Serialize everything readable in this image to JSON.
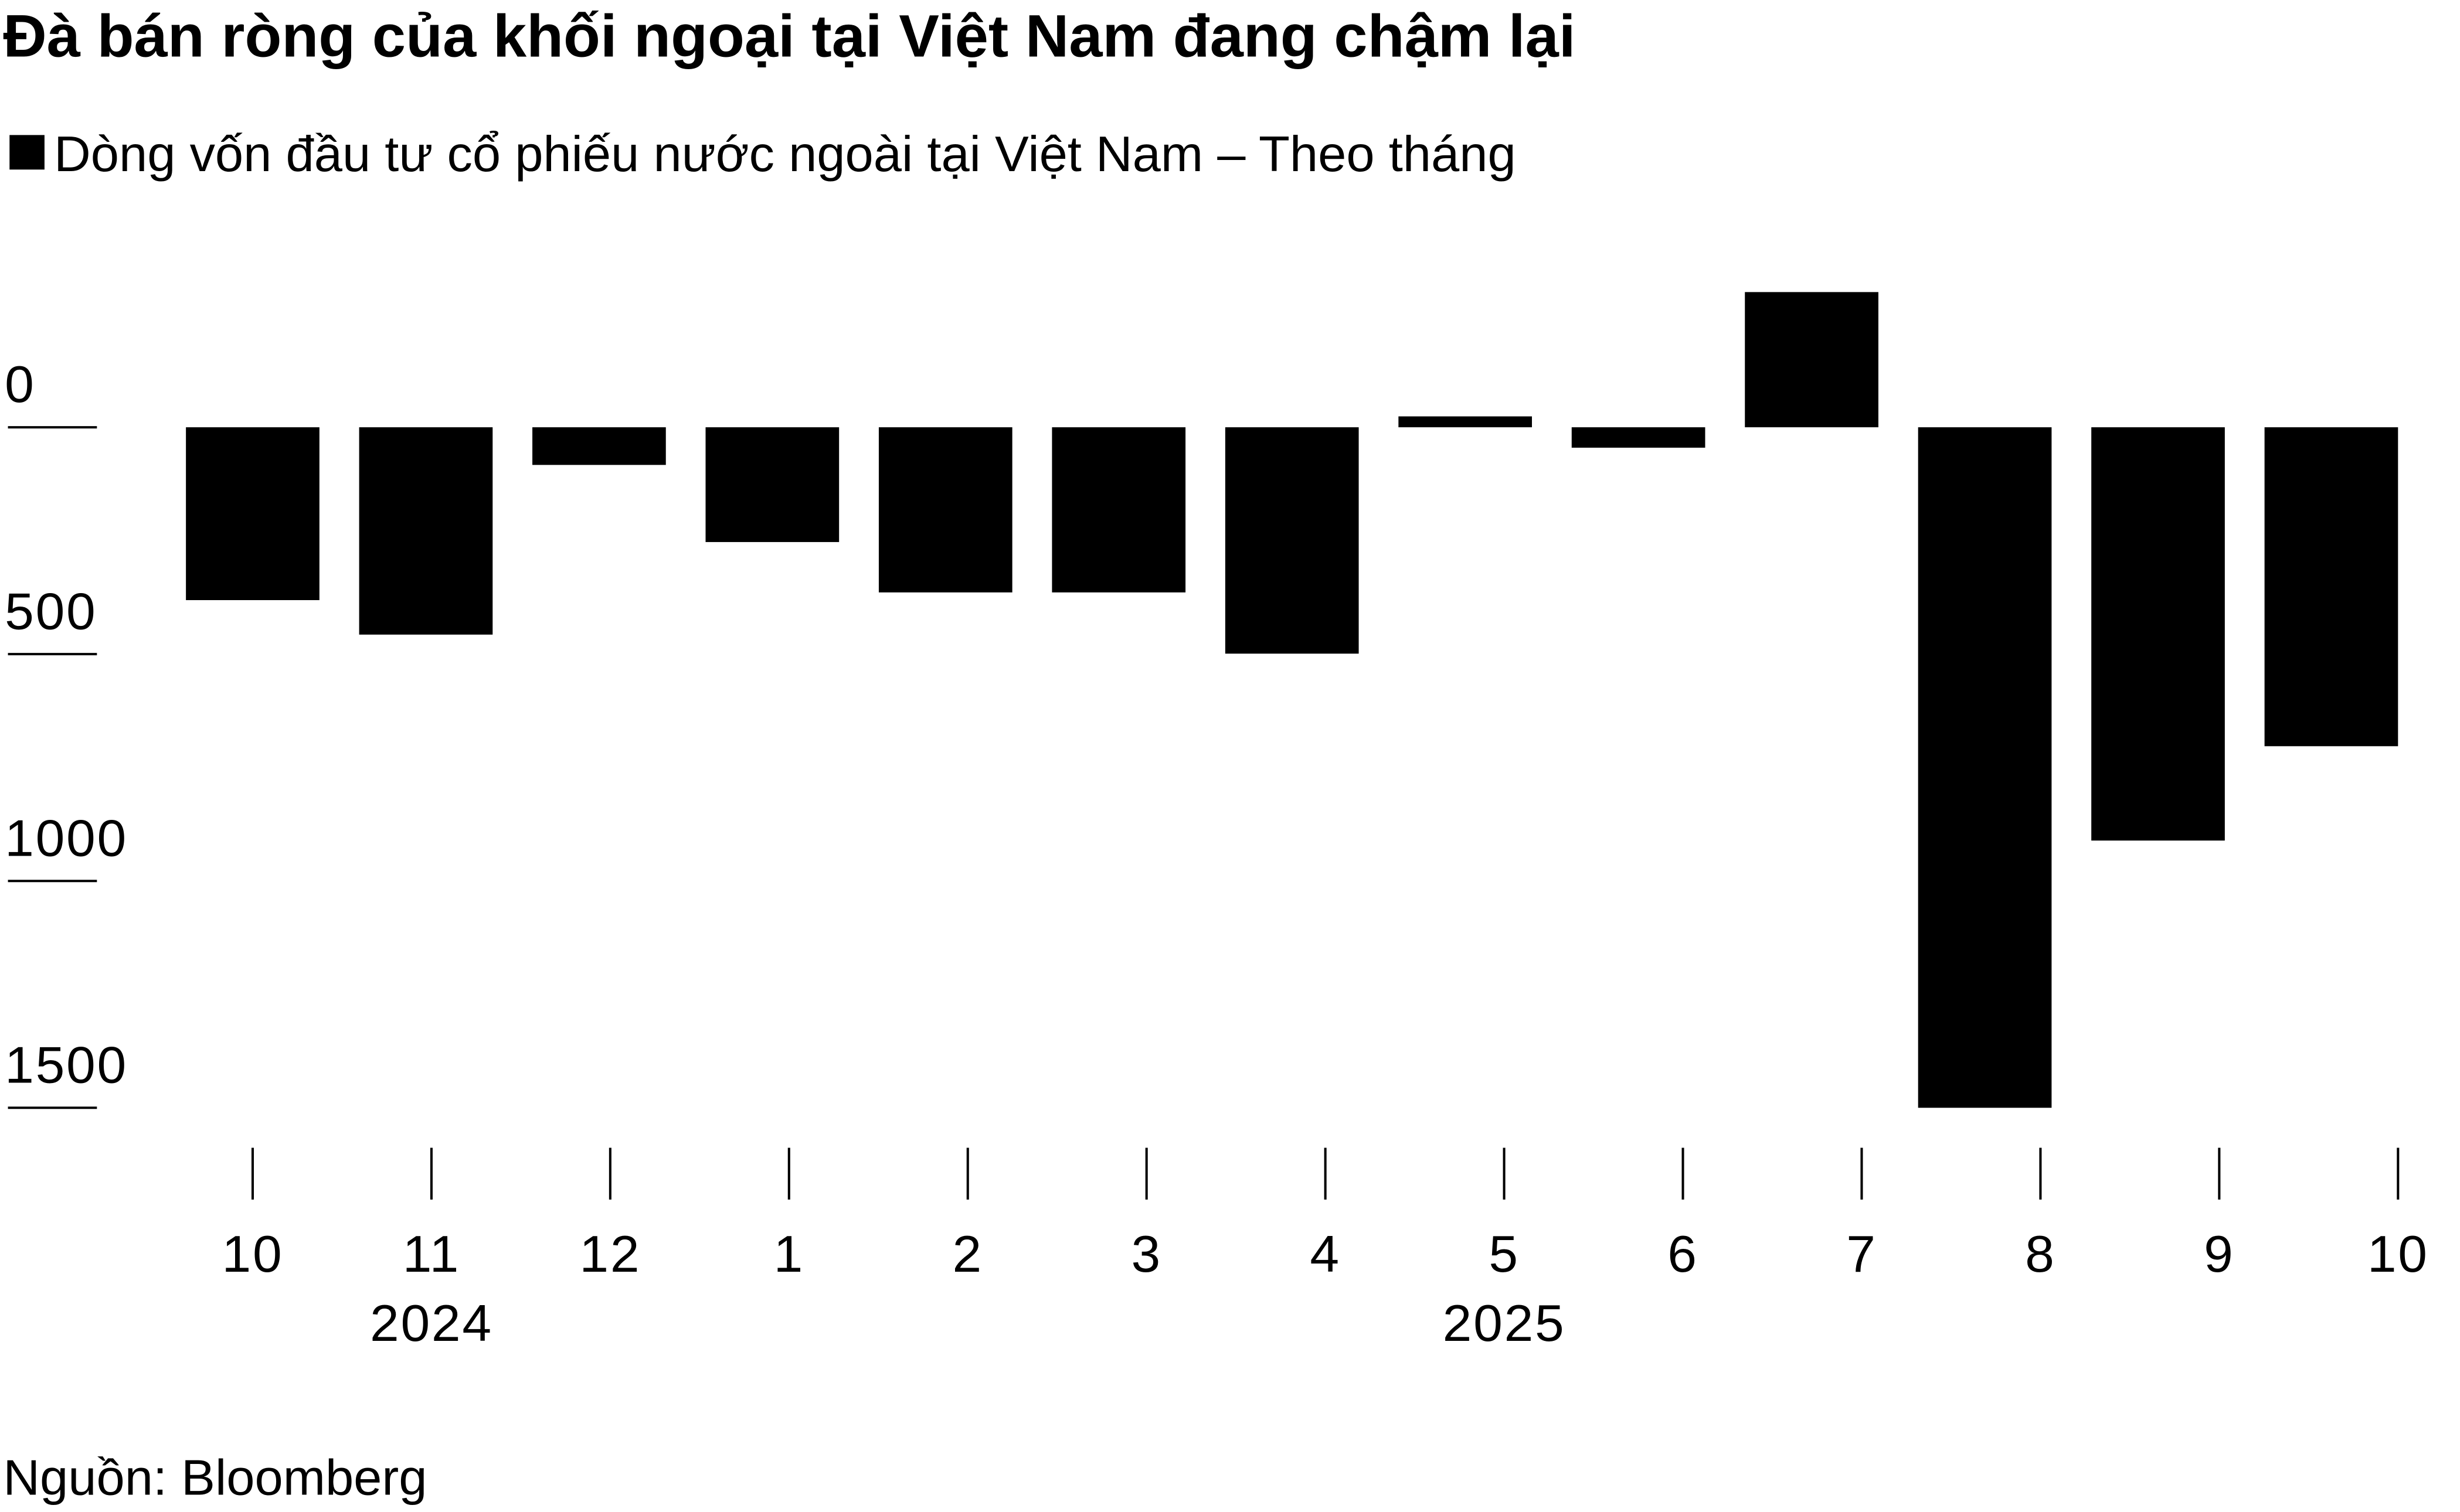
{
  "chart_data": {
    "type": "bar",
    "title": "Đà bán ròng của khối ngoại tại Việt Nam đang chậm lại",
    "series": [
      {
        "name": "Dòng vốn đầu tư cổ phiếu nước ngoài tại Việt Nam – Theo tháng",
        "color": "#000000",
        "values": [
          381,
          457,
          83,
          253,
          364,
          364,
          499,
          -24,
          45,
          -298,
          1500,
          911,
          703
        ]
      }
    ],
    "categories": [
      "10",
      "11",
      "12",
      "1",
      "2",
      "3",
      "4",
      "5",
      "6",
      "7",
      "8",
      "9",
      "10"
    ],
    "years": [
      "2024",
      "2025"
    ],
    "ylim": [
      1550,
      -350
    ],
    "yticks": [
      0,
      500,
      1000,
      1500
    ],
    "source": "Nguồn: Bloomberg"
  }
}
